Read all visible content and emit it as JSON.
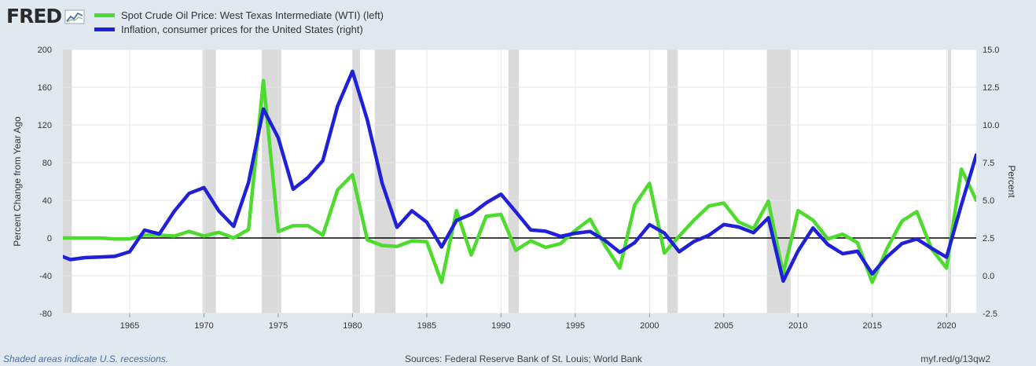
{
  "brand": {
    "logo_text": "FRED",
    "logo_icon": "chart-line-icon"
  },
  "colors": {
    "oil": "#4ddb2e",
    "inflation": "#2020d8",
    "recession": "#dadada",
    "plot_bg": "#ffffff",
    "zero_line": "#000000",
    "page_bg": "#e1e9f0"
  },
  "legend": {
    "items": [
      {
        "label": "Spot Crude Oil Price: West Texas Intermediate (WTI) (left)",
        "color": "#4ddb2e"
      },
      {
        "label": "Inflation, consumer prices for the United States (right)",
        "color": "#2020d8"
      }
    ]
  },
  "footer": {
    "note": "Shaded areas indicate U.S. recessions.",
    "sources": "Sources: Federal Reserve Bank of St. Louis; World Bank",
    "url": "myf.red/g/13qw2"
  },
  "chart_data": {
    "type": "line",
    "xlabel": "",
    "ylabel_left": "Percent Change from Year Ago",
    "ylabel_right": "Percent",
    "xlim": [
      1960.5,
      2022
    ],
    "ylim_left": [
      -80,
      200
    ],
    "ylim_right": [
      -2.5,
      15.0
    ],
    "x_ticks": [
      1965,
      1970,
      1975,
      1980,
      1985,
      1990,
      1995,
      2000,
      2005,
      2010,
      2015,
      2020
    ],
    "y_ticks_left": [
      "-80",
      "-40",
      "0",
      "40",
      "80",
      "120",
      "160",
      "200"
    ],
    "y_ticks_right": [
      "-2.5",
      "0.0",
      "2.5",
      "5.0",
      "7.5",
      "10.0",
      "12.5",
      "15.0"
    ],
    "grid": true,
    "recessions": [
      [
        1960.3,
        1961.1
      ],
      [
        1969.9,
        1970.8
      ],
      [
        1973.9,
        1975.2
      ],
      [
        1980.0,
        1980.5
      ],
      [
        1981.5,
        1982.9
      ],
      [
        1990.5,
        1991.2
      ],
      [
        2001.2,
        2001.9
      ],
      [
        2007.9,
        2009.5
      ],
      [
        2020.1,
        2020.3
      ]
    ],
    "series": [
      {
        "name": "Spot Crude Oil Price: West Texas Intermediate (WTI) (left)",
        "axis": "left",
        "color": "#4ddb2e",
        "x": [
          1960,
          1961,
          1962,
          1963,
          1964,
          1965,
          1966,
          1967,
          1968,
          1969,
          1970,
          1971,
          1972,
          1973,
          1974,
          1975,
          1976,
          1977,
          1978,
          1979,
          1980,
          1981,
          1982,
          1983,
          1984,
          1985,
          1986,
          1987,
          1988,
          1989,
          1990,
          1991,
          1992,
          1993,
          1994,
          1995,
          1996,
          1997,
          1998,
          1999,
          2000,
          2001,
          2002,
          2003,
          2004,
          2005,
          2006,
          2007,
          2008,
          2009,
          2010,
          2011,
          2012,
          2013,
          2014,
          2015,
          2016,
          2017,
          2018,
          2019,
          2020,
          2021,
          2022
        ],
        "y": [
          0,
          0,
          0,
          0,
          -1,
          -1,
          3,
          3,
          2,
          7,
          2,
          6,
          0,
          9,
          167,
          7,
          13,
          13,
          3,
          51,
          67,
          -2,
          -8,
          -9,
          -3,
          -4,
          -47,
          29,
          -18,
          23,
          25,
          -13,
          -3,
          -10,
          -6,
          8,
          20,
          -8,
          -32,
          35,
          58,
          -16,
          2,
          19,
          34,
          37,
          17,
          10,
          39,
          -38,
          29,
          19,
          -1,
          4,
          -5,
          -47,
          -11,
          18,
          28,
          -12,
          -32,
          73,
          40
        ]
      },
      {
        "name": "Inflation, consumer prices for the United States (right)",
        "axis": "right",
        "color": "#2020d8",
        "x": [
          1960,
          1961,
          1962,
          1963,
          1964,
          1965,
          1966,
          1967,
          1968,
          1969,
          1970,
          1971,
          1972,
          1973,
          1974,
          1975,
          1976,
          1977,
          1978,
          1979,
          1980,
          1981,
          1982,
          1983,
          1984,
          1985,
          1986,
          1987,
          1988,
          1989,
          1990,
          1991,
          1992,
          1993,
          1994,
          1995,
          1996,
          1997,
          1998,
          1999,
          2000,
          2001,
          2002,
          2003,
          2004,
          2005,
          2006,
          2007,
          2008,
          2009,
          2010,
          2011,
          2012,
          2013,
          2014,
          2015,
          2016,
          2017,
          2018,
          2019,
          2020,
          2021,
          2022
        ],
        "y": [
          1.46,
          1.07,
          1.2,
          1.24,
          1.28,
          1.59,
          3.02,
          2.77,
          4.27,
          5.46,
          5.84,
          4.29,
          3.27,
          6.18,
          11.05,
          9.14,
          5.74,
          6.5,
          7.63,
          11.25,
          13.55,
          10.33,
          6.13,
          3.21,
          4.3,
          3.55,
          1.9,
          3.66,
          4.08,
          4.83,
          5.4,
          4.23,
          3.03,
          2.95,
          2.61,
          2.81,
          2.93,
          2.34,
          1.55,
          2.19,
          3.38,
          2.83,
          1.59,
          2.27,
          2.68,
          3.39,
          3.23,
          2.85,
          3.84,
          -0.36,
          1.64,
          3.16,
          2.07,
          1.46,
          1.62,
          0.12,
          1.26,
          2.13,
          2.44,
          1.81,
          1.23,
          4.7,
          8.0
        ]
      }
    ]
  }
}
